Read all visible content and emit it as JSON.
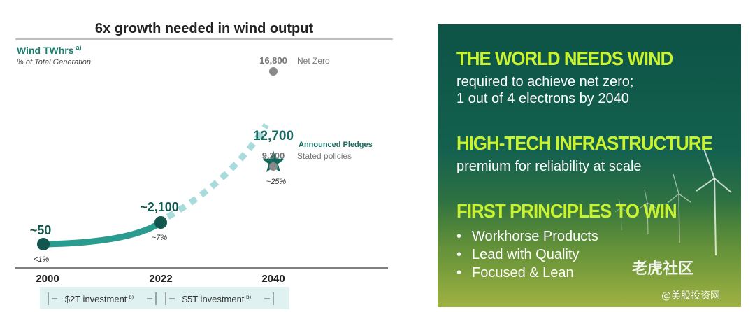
{
  "chart_data": {
    "type": "line",
    "title": "6x growth needed in wind output",
    "ylabel": "Wind TWhrs",
    "ylabel_sup": "-a)",
    "ylabel_note": "% of Total Generation",
    "x": [
      "2000",
      "2022",
      "2040"
    ],
    "series": [
      {
        "points": [
          {
            "x": "2000",
            "value": 50,
            "label": "~50",
            "share": "<1%"
          },
          {
            "x": "2022",
            "value": 2100,
            "label": "~2,100",
            "share": "~7%"
          }
        ]
      },
      {
        "points": [
          {
            "x": "2022",
            "value": 2100
          },
          {
            "x": "2040",
            "value": 12700
          }
        ]
      }
    ],
    "scenarios_2040": [
      {
        "name": "Net Zero",
        "value": 16800,
        "label": "16,800"
      },
      {
        "name": "Announced Pledges",
        "value": 12700,
        "label": "12,700",
        "share": "~25%"
      },
      {
        "name": "Stated policies",
        "value": 9300,
        "label": "9,300"
      }
    ],
    "investment_bands": [
      {
        "label": "$2T investment",
        "sup": "-b)"
      },
      {
        "label": "$5T investment",
        "sup": "-b)"
      }
    ],
    "colors": {
      "line": "#2a9b8f",
      "dashed": "#a8dbdb",
      "point": "#12564d",
      "scenario": "#8a8a8a",
      "band": "#dff2f1"
    }
  },
  "panel": {
    "sections": [
      {
        "heading": "THE WORLD NEEDS WIND",
        "lines": [
          "required to achieve net zero;",
          "1 out of 4 electrons by 2040"
        ]
      },
      {
        "heading": "HIGH-TECH INFRASTRUCTURE",
        "lines": [
          "premium for reliability at scale"
        ]
      },
      {
        "heading": "FIRST PRINCIPLES TO WIN",
        "lines": []
      }
    ],
    "bullets": [
      "Workhorse Products",
      "Lead with Quality",
      "Focused & Lean"
    ],
    "bullet_char": "•",
    "accent_color": "#c9f230"
  },
  "watermark": {
    "brand": "老虎社区",
    "handle": "@美股投资网"
  }
}
